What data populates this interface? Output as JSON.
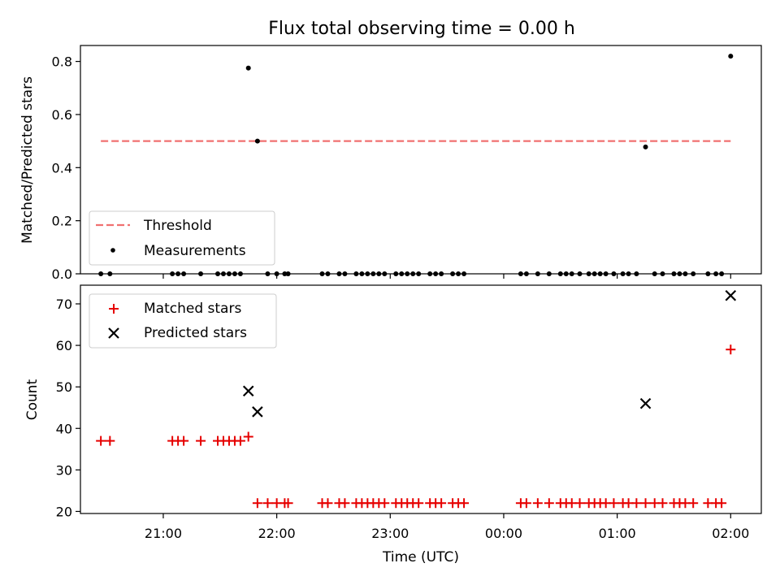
{
  "title": "Flux total observing time = 0.00 h",
  "chart_data": [
    {
      "type": "scatter",
      "ylabel": "Matched/Predicted stars",
      "ylim": [
        0,
        0.86
      ],
      "y_ticks": [
        "0.0",
        "0.2",
        "0.4",
        "0.6",
        "0.8"
      ],
      "y_tick_values": [
        0,
        0.2,
        0.4,
        0.6,
        0.8
      ],
      "legend_position": "lower-left",
      "threshold": {
        "name": "Threshold",
        "value": 0.5,
        "x_start": 20.45,
        "x_end": 26.0,
        "color": "#f07070"
      },
      "measurements": {
        "name": "Measurements",
        "color": "#000000",
        "x": [
          20.45,
          20.53,
          21.08,
          21.13,
          21.18,
          21.33,
          21.48,
          21.53,
          21.58,
          21.63,
          21.68,
          21.75,
          21.83,
          21.92,
          22.0,
          22.07,
          22.1,
          22.4,
          22.45,
          22.55,
          22.6,
          22.7,
          22.75,
          22.8,
          22.85,
          22.9,
          22.95,
          23.05,
          23.1,
          23.15,
          23.2,
          23.25,
          23.35,
          23.4,
          23.45,
          23.55,
          23.6,
          23.65,
          24.15,
          24.2,
          24.3,
          24.4,
          24.5,
          24.55,
          24.6,
          24.67,
          24.75,
          24.8,
          24.85,
          24.9,
          24.97,
          25.05,
          25.1,
          25.17,
          25.25,
          25.33,
          25.4,
          25.5,
          25.55,
          25.6,
          25.67,
          25.8,
          25.87,
          25.92,
          26.0
        ],
        "y": [
          0,
          0,
          0,
          0,
          0,
          0,
          0,
          0,
          0,
          0,
          0,
          0.775,
          0.5,
          0,
          0,
          0,
          0,
          0,
          0,
          0,
          0,
          0,
          0,
          0,
          0,
          0,
          0,
          0,
          0,
          0,
          0,
          0,
          0,
          0,
          0,
          0,
          0,
          0,
          0,
          0,
          0,
          0,
          0,
          0,
          0,
          0,
          0,
          0,
          0,
          0,
          0,
          0,
          0,
          0,
          0.478,
          0,
          0,
          0,
          0,
          0,
          0,
          0,
          0,
          0,
          0.82
        ]
      }
    },
    {
      "type": "scatter",
      "xlabel": "Time (UTC)",
      "ylabel": "Count",
      "ylim": [
        19.5,
        74.5
      ],
      "y_ticks": [
        "20",
        "30",
        "40",
        "50",
        "60",
        "70"
      ],
      "y_tick_values": [
        20,
        30,
        40,
        50,
        60,
        70
      ],
      "x_ticks": [
        "21:00",
        "22:00",
        "23:00",
        "00:00",
        "01:00",
        "02:00"
      ],
      "x_tick_values": [
        21,
        22,
        23,
        24,
        25,
        26
      ],
      "xlim": [
        20.27,
        26.27
      ],
      "legend_position": "top-left",
      "series": [
        {
          "name": "Matched stars",
          "marker": "plus",
          "color": "#e60000",
          "x": [
            20.45,
            20.53,
            21.08,
            21.13,
            21.18,
            21.33,
            21.48,
            21.53,
            21.58,
            21.63,
            21.68,
            21.75,
            21.83,
            21.92,
            22.0,
            22.07,
            22.1,
            22.4,
            22.45,
            22.55,
            22.6,
            22.7,
            22.75,
            22.8,
            22.85,
            22.9,
            22.95,
            23.05,
            23.1,
            23.15,
            23.2,
            23.25,
            23.35,
            23.4,
            23.45,
            23.55,
            23.6,
            23.65,
            24.15,
            24.2,
            24.3,
            24.4,
            24.5,
            24.55,
            24.6,
            24.67,
            24.75,
            24.8,
            24.85,
            24.9,
            24.97,
            25.05,
            25.1,
            25.17,
            25.25,
            25.33,
            25.4,
            25.5,
            25.55,
            25.6,
            25.67,
            25.8,
            25.87,
            25.92,
            26.0
          ],
          "y": [
            37,
            37,
            37,
            37,
            37,
            37,
            37,
            37,
            37,
            37,
            37,
            38,
            22,
            22,
            22,
            22,
            22,
            22,
            22,
            22,
            22,
            22,
            22,
            22,
            22,
            22,
            22,
            22,
            22,
            22,
            22,
            22,
            22,
            22,
            22,
            22,
            22,
            22,
            22,
            22,
            22,
            22,
            22,
            22,
            22,
            22,
            22,
            22,
            22,
            22,
            22,
            22,
            22,
            22,
            22,
            22,
            22,
            22,
            22,
            22,
            22,
            22,
            22,
            22,
            59
          ]
        },
        {
          "name": "Predicted stars",
          "marker": "x",
          "color": "#000000",
          "x": [
            21.75,
            21.83,
            25.25,
            26.0
          ],
          "y": [
            49,
            44,
            46,
            72
          ]
        }
      ]
    }
  ]
}
